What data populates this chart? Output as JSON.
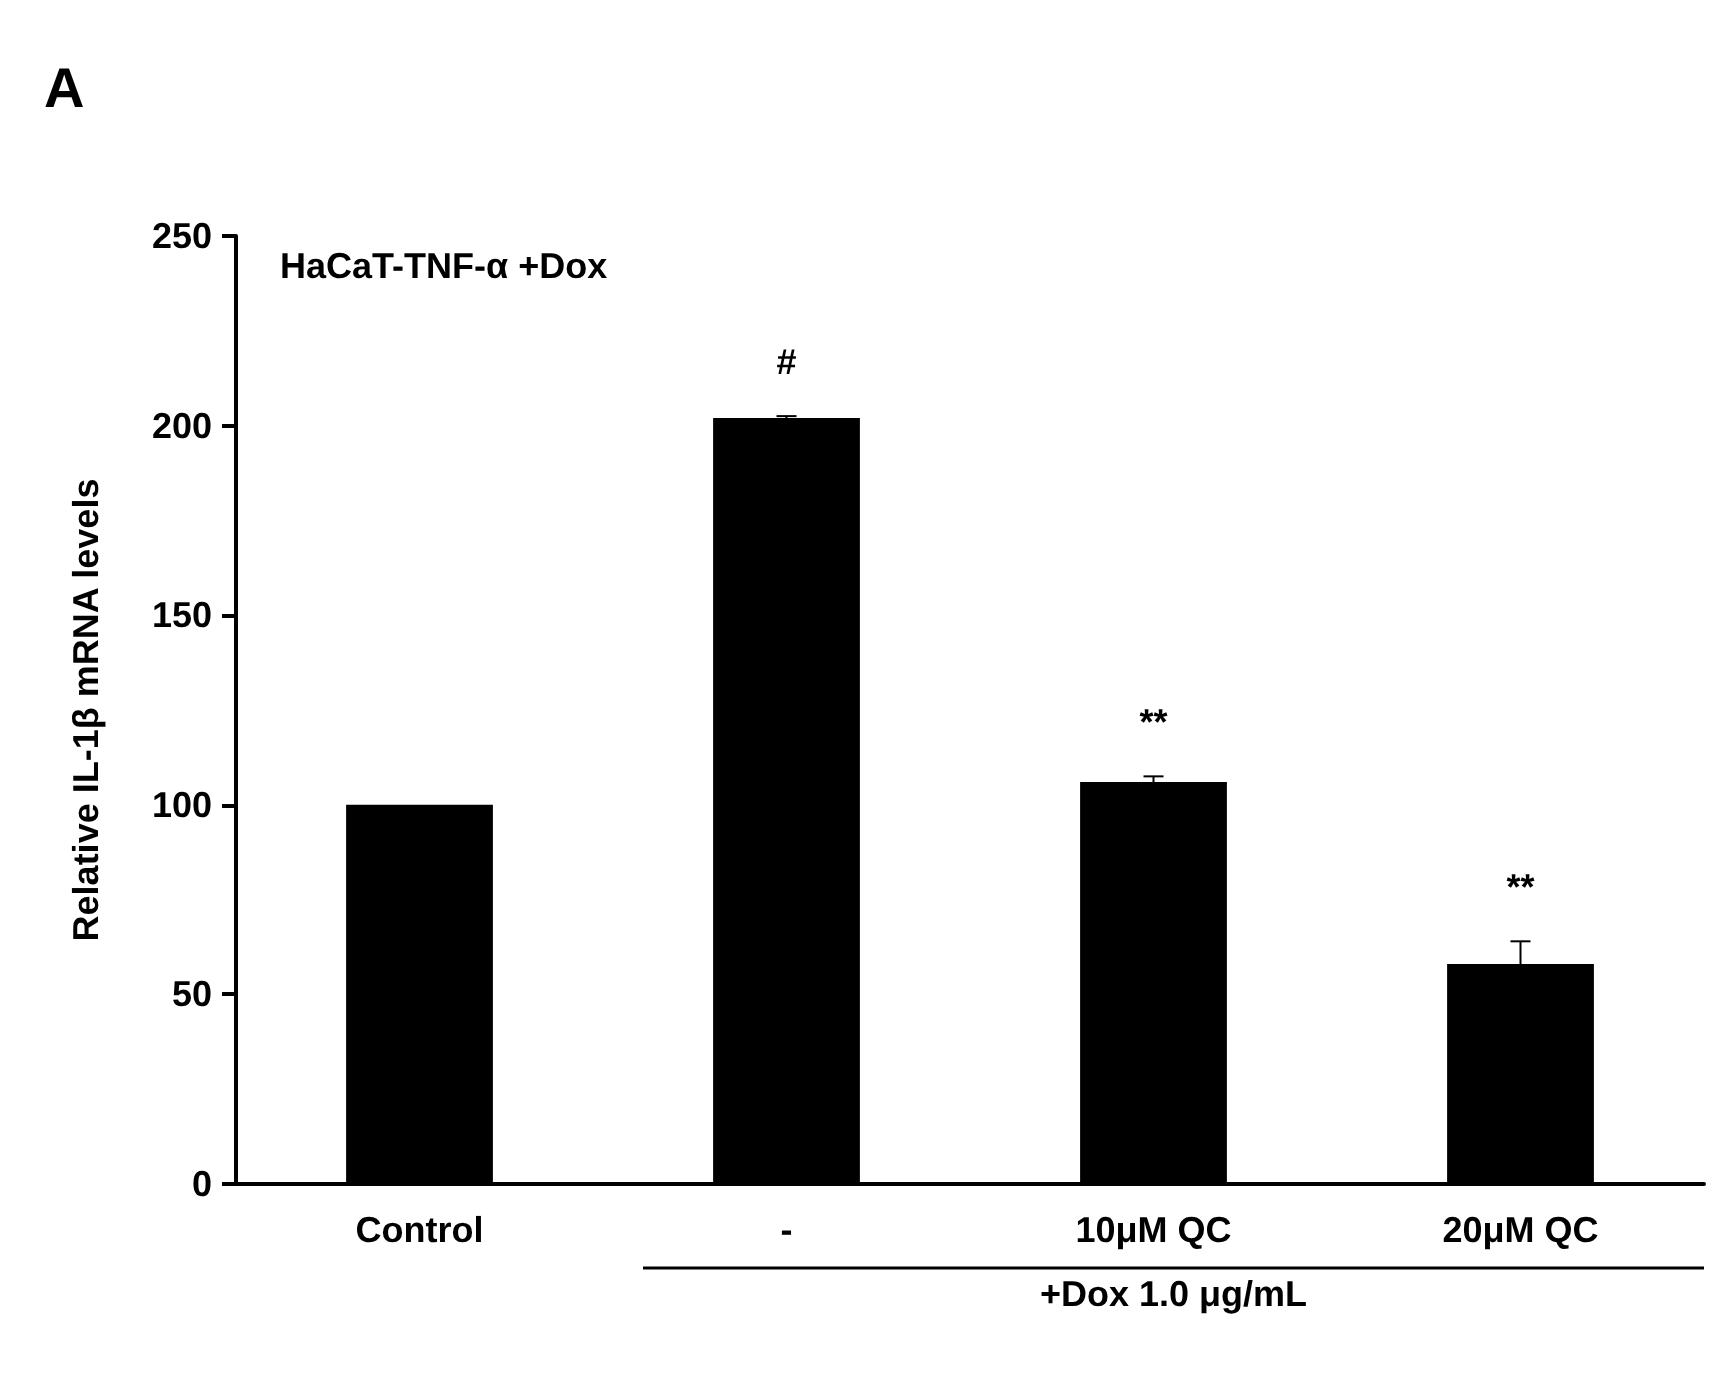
{
  "chart_data": {
    "type": "bar",
    "title": "HaCaT-TNF-α +Dox",
    "ylabel": "Relative IL-1β mRNA levels",
    "categories": [
      "Control",
      "-",
      "10μM QC",
      "20μM QC"
    ],
    "values": [
      100,
      202,
      106,
      58
    ],
    "errors": [
      null,
      0.5,
      1.5,
      6
    ],
    "color": "#000000",
    "ylim": [
      0,
      250
    ],
    "yticks": [
      0,
      50,
      100,
      150,
      200,
      250
    ],
    "grid": false,
    "annotations": [
      "A",
      "#",
      "**",
      "**",
      "+Dox 1.0 μg/mL"
    ]
  }
}
